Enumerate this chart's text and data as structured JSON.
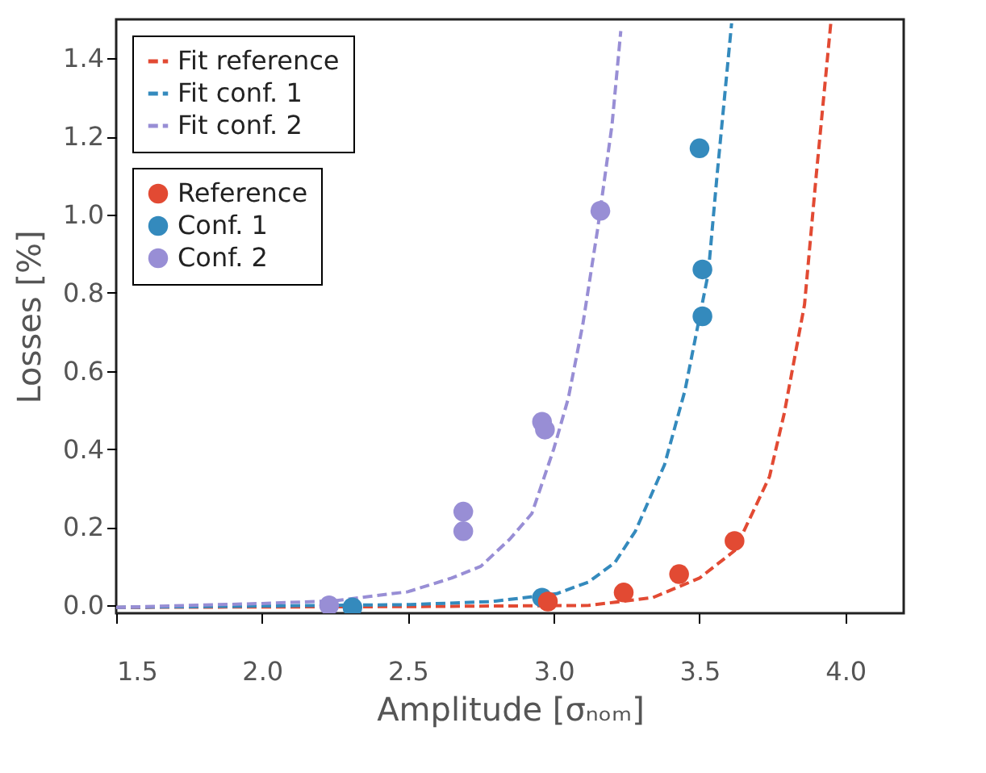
{
  "chart_data": {
    "type": "scatter",
    "xlabel": "Amplitude [σₙₒₘ]",
    "ylabel": "Losses [%]",
    "xlim": [
      1.5,
      4.2
    ],
    "ylim": [
      -0.02,
      1.5
    ],
    "xticks": [
      1.5,
      {
        "value": 2,
        "label": "2.0"
      },
      2.5,
      {
        "value": 3,
        "label": "3.0"
      },
      3.5,
      {
        "value": 4,
        "label": "4.0"
      }
    ],
    "yticks": [
      {
        "value": 0,
        "label": "0.0"
      },
      0.2,
      0.4,
      0.6,
      0.8,
      {
        "value": 1,
        "label": "1.0"
      },
      1.2,
      1.4
    ],
    "grid": false,
    "legend": "top left",
    "series": [
      {
        "name": "Fit reference",
        "type": "line",
        "line_style": "dashed",
        "color": "#e24a33",
        "x": [
          1.5,
          2.5,
          3.12,
          3.34,
          3.5,
          3.62,
          3.69,
          3.74,
          3.79,
          3.86,
          3.9,
          3.95
        ],
        "values": [
          -0.005,
          -0.003,
          0.0,
          0.02,
          0.07,
          0.14,
          0.25,
          0.33,
          0.49,
          0.77,
          1.1,
          1.49
        ]
      },
      {
        "name": "Fit conf. 1",
        "type": "line",
        "line_style": "dashed",
        "color": "#348abd",
        "x": [
          1.5,
          2.5,
          2.79,
          3.01,
          3.12,
          3.21,
          3.28,
          3.38,
          3.45,
          3.53,
          3.56,
          3.61
        ],
        "values": [
          -0.005,
          0.002,
          0.01,
          0.03,
          0.06,
          0.11,
          0.19,
          0.36,
          0.55,
          0.85,
          1.1,
          1.49
        ]
      },
      {
        "name": "Fit conf. 2",
        "type": "line",
        "line_style": "dashed",
        "color": "#988ed5",
        "x": [
          1.5,
          2.0,
          2.25,
          2.5,
          2.65,
          2.75,
          2.85,
          2.925,
          3.0,
          3.05,
          3.1,
          3.15,
          3.2,
          3.23
        ],
        "values": [
          -0.005,
          0.005,
          0.012,
          0.035,
          0.07,
          0.1,
          0.17,
          0.235,
          0.4,
          0.53,
          0.72,
          0.96,
          1.23,
          1.47
        ]
      },
      {
        "name": "Reference",
        "marker": "circle",
        "color": "#e24a33",
        "x": [
          2.98,
          3.24,
          3.43,
          3.62
        ],
        "values": [
          0.01,
          0.033,
          0.08,
          0.165
        ]
      },
      {
        "name": "Conf. 1",
        "marker": "circle",
        "color": "#348abd",
        "x": [
          2.31,
          2.96,
          3.5,
          3.51,
          3.51
        ],
        "values": [
          -0.005,
          0.02,
          1.17,
          0.86,
          0.74
        ]
      },
      {
        "name": "Conf. 2",
        "marker": "circle",
        "color": "#988ed5",
        "x": [
          2.23,
          2.69,
          2.69,
          2.96,
          2.97,
          3.16
        ],
        "values": [
          0.0,
          0.24,
          0.19,
          0.47,
          0.45,
          1.01
        ]
      }
    ]
  }
}
